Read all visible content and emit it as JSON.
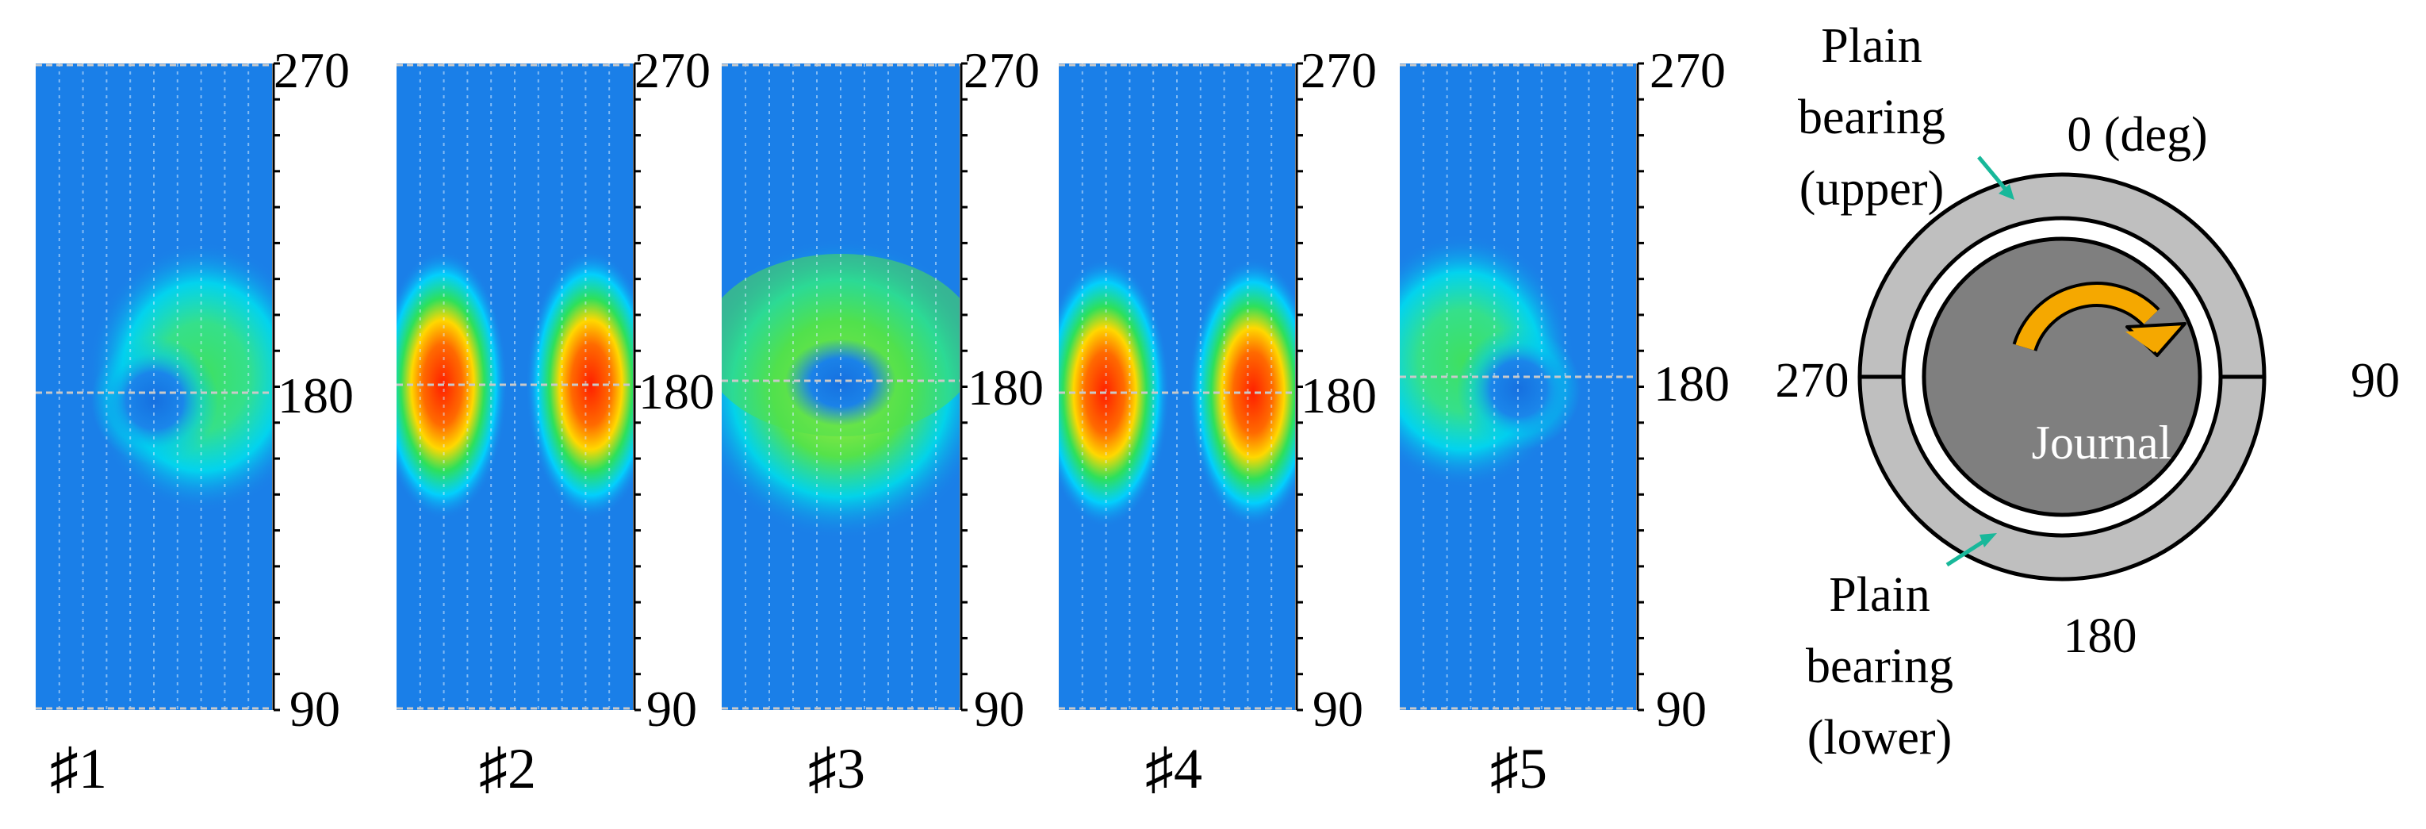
{
  "figure": {
    "axis_ticks": {
      "top": "270",
      "middle": "180",
      "bottom": "90"
    },
    "panels": [
      {
        "label": "♯1",
        "pattern": "crescent-right"
      },
      {
        "label": "♯2",
        "pattern": "two-peaks"
      },
      {
        "label": "♯3",
        "pattern": "ring"
      },
      {
        "label": "♯4",
        "pattern": "two-peaks"
      },
      {
        "label": "♯5",
        "pattern": "crescent-left"
      }
    ],
    "colormap": [
      "#1a7fe8",
      "#00d2ff",
      "#22e060",
      "#ffd400",
      "#ff2a00"
    ]
  },
  "diagram": {
    "label_0": "0 (deg)",
    "label_90": "90",
    "label_180": "180",
    "label_270": "270",
    "upper_bearing": [
      "Plain",
      "bearing",
      "(upper)"
    ],
    "lower_bearing": [
      "Plain",
      "bearing",
      "(lower)"
    ],
    "journal": "Journal",
    "colors": {
      "outer_ring": "#bfbfbf",
      "gap": "#ffffff",
      "journal": "#7f7f7f",
      "arrow": "#f5a800",
      "pointer": "#18b89a"
    }
  }
}
